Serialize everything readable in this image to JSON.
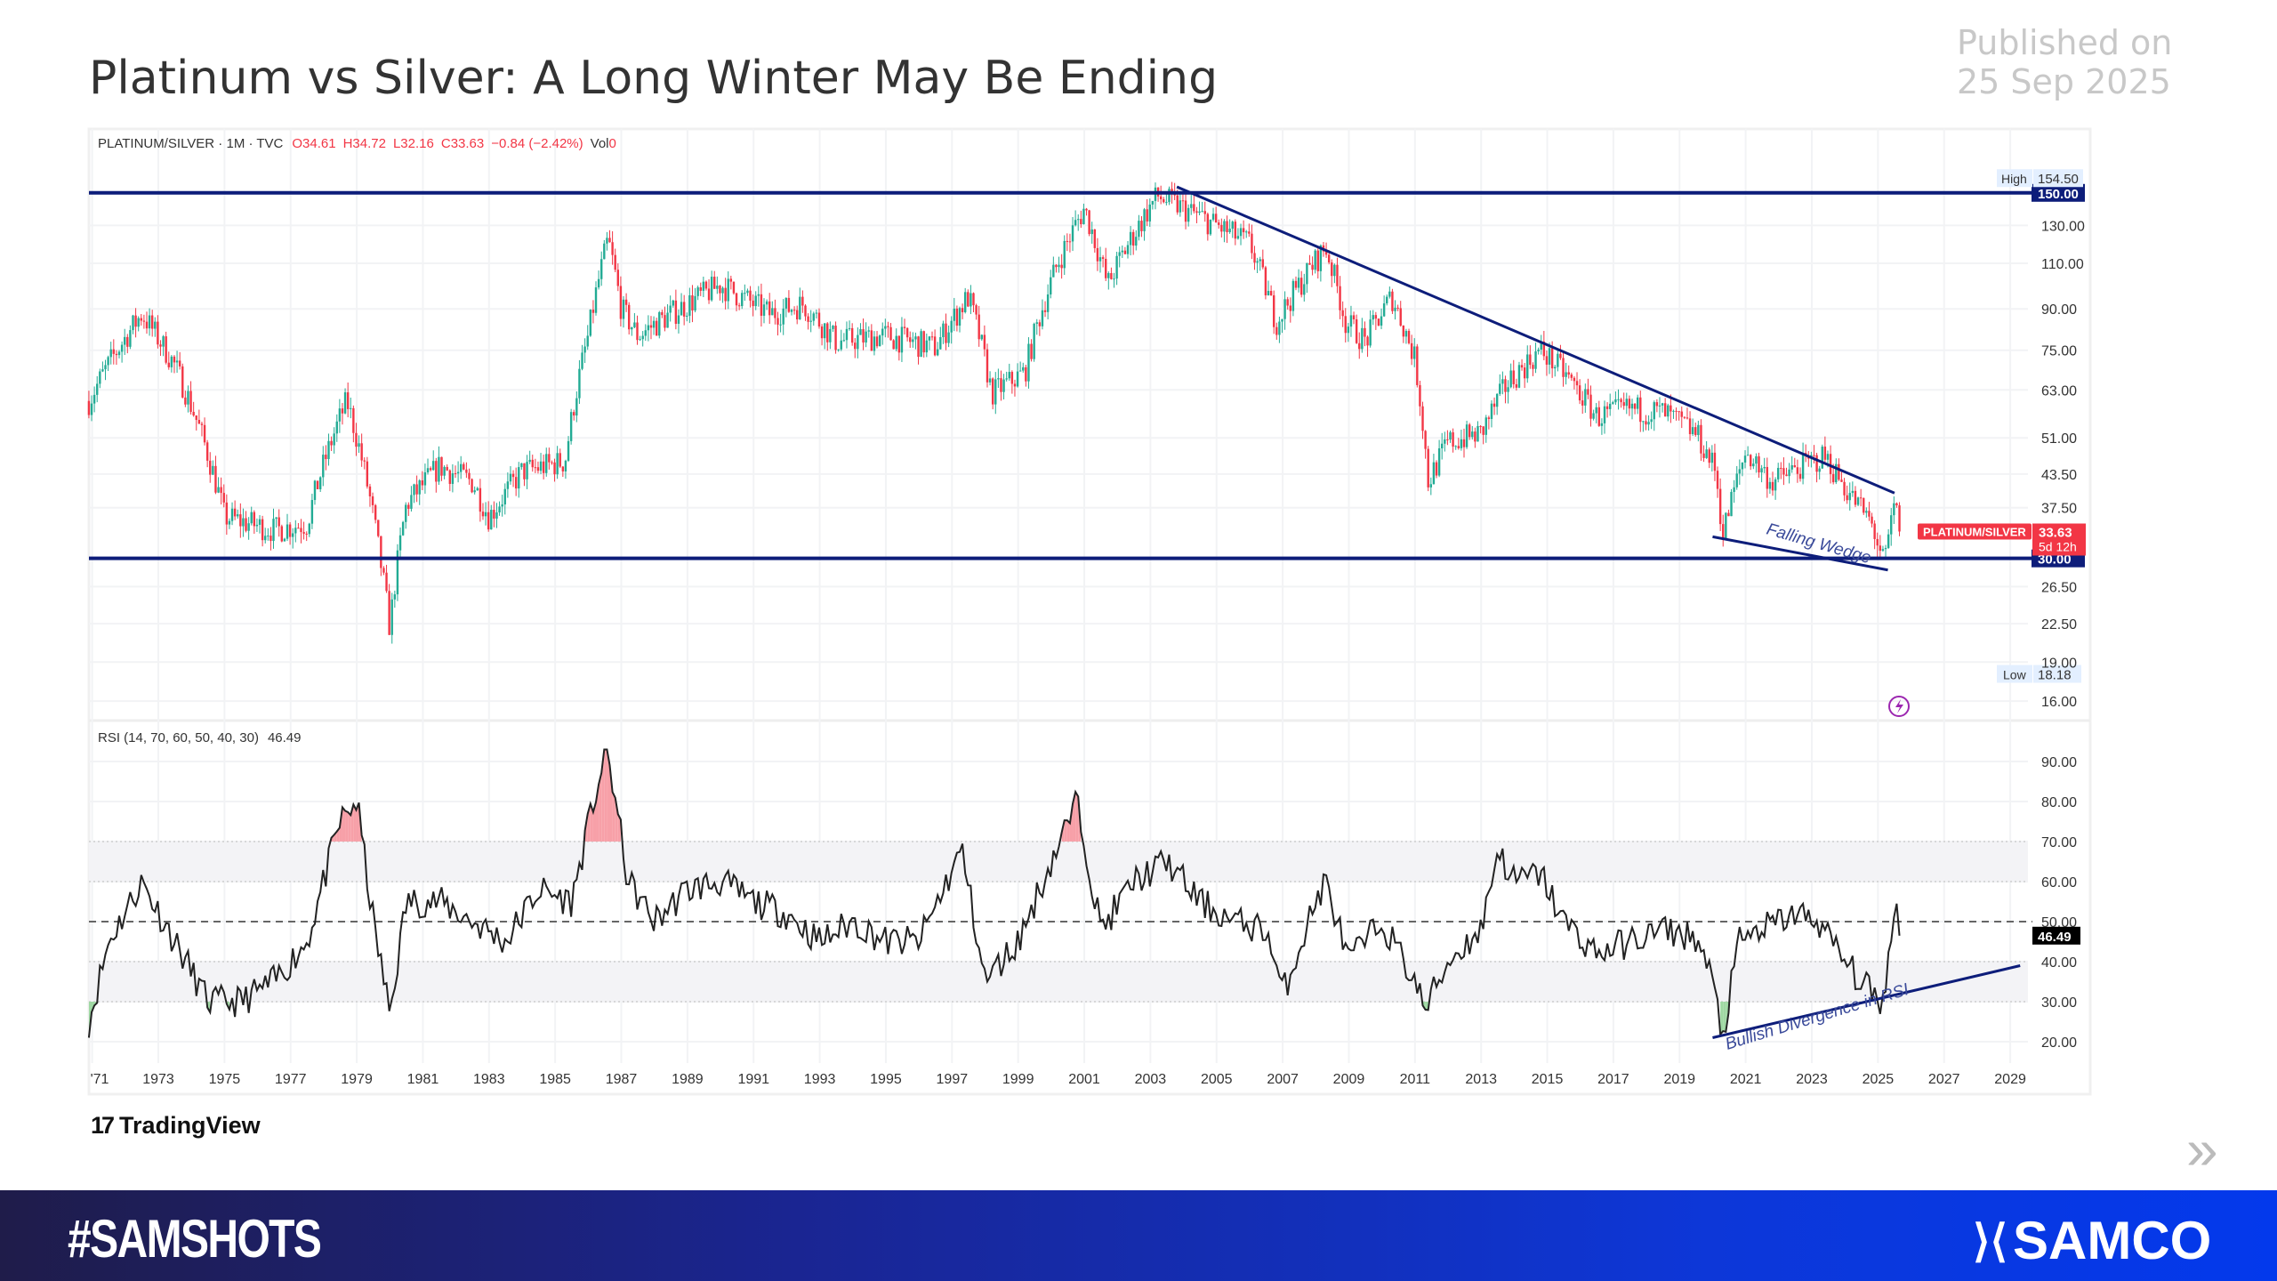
{
  "header": {
    "title": "Platinum vs Silver: A Long Winter May Be Ending",
    "published_label": "Published on",
    "published_date": "25 Sep 2025"
  },
  "legend": {
    "symbol": "PLATINUM/SILVER · 1M · TVC",
    "o": "O34.61",
    "h": "H34.72",
    "l": "L32.16",
    "c": "C33.63",
    "chg": "−0.84 (−2.42%)",
    "vol_label": "Vol",
    "vol": "0"
  },
  "rsi_legend": {
    "label": "RSI (14, 70, 60, 50, 40, 30)",
    "value": "46.49"
  },
  "footer": {
    "brand": "TradingView",
    "hashtag": "#SAMSHOTS",
    "company": "SAMCO"
  },
  "colors": {
    "up": "#22ab94",
    "down": "#f23645",
    "line": "#0d1d7a",
    "text": "#333333"
  },
  "chart_data": [
    {
      "type": "candlestick",
      "title": "PLATINUM/SILVER",
      "scale": "log",
      "ylim": [
        15,
        160
      ],
      "yticks": [
        16,
        19,
        22.5,
        26.5,
        37.5,
        43.5,
        51,
        63,
        75,
        90,
        110,
        130
      ],
      "x_ticks": [
        "'71",
        "1973",
        "1975",
        "1977",
        "1979",
        "1981",
        "1983",
        "1985",
        "1987",
        "1989",
        "1991",
        "1993",
        "1995",
        "1997",
        "1999",
        "2001",
        "2003",
        "2005",
        "2007",
        "2009",
        "2011",
        "2013",
        "2015",
        "2017",
        "2019",
        "2021",
        "2023",
        "2025",
        "2027",
        "2029"
      ],
      "x_tick_years": [
        1971,
        1973,
        1975,
        1977,
        1979,
        1981,
        1983,
        1985,
        1987,
        1989,
        1991,
        1993,
        1995,
        1997,
        1999,
        2001,
        2003,
        2005,
        2007,
        2009,
        2011,
        2013,
        2015,
        2017,
        2019,
        2021,
        2023,
        2025,
        2027,
        2029
      ],
      "approx_path": [
        [
          1970.9,
          60
        ],
        [
          1972.5,
          88
        ],
        [
          1973.5,
          70
        ],
        [
          1975,
          36
        ],
        [
          1976.5,
          34
        ],
        [
          1977.5,
          35
        ],
        [
          1978.7,
          60
        ],
        [
          1979.7,
          30
        ],
        [
          1980.0,
          22
        ],
        [
          1980.5,
          38
        ],
        [
          1981.5,
          45
        ],
        [
          1982.5,
          42
        ],
        [
          1983,
          36
        ],
        [
          1984,
          44
        ],
        [
          1985.3,
          46
        ],
        [
          1986.0,
          80
        ],
        [
          1986.6,
          122
        ],
        [
          1987.0,
          90
        ],
        [
          1987.5,
          80
        ],
        [
          1988.5,
          88
        ],
        [
          1990,
          100
        ],
        [
          1991.5,
          88
        ],
        [
          1992.5,
          92
        ],
        [
          1993.5,
          78
        ],
        [
          1995,
          80
        ],
        [
          1996.5,
          76
        ],
        [
          1997.5,
          95
        ],
        [
          1998.2,
          62
        ],
        [
          1999.2,
          68
        ],
        [
          2000.2,
          110
        ],
        [
          2001.0,
          140
        ],
        [
          2001.7,
          100
        ],
        [
          2002.5,
          125
        ],
        [
          2003.2,
          148
        ],
        [
          2004,
          140
        ],
        [
          2005,
          130
        ],
        [
          2006,
          120
        ],
        [
          2006.8,
          85
        ],
        [
          2007.5,
          100
        ],
        [
          2008.3,
          118
        ],
        [
          2008.9,
          85
        ],
        [
          2009.5,
          78
        ],
        [
          2010.3,
          95
        ],
        [
          2011.0,
          72
        ],
        [
          2011.4,
          42
        ],
        [
          2012,
          50
        ],
        [
          2013,
          52
        ],
        [
          2013.8,
          65
        ],
        [
          2014.8,
          75
        ],
        [
          2015.5,
          68
        ],
        [
          2016.5,
          56
        ],
        [
          2017.5,
          58
        ],
        [
          2018.5,
          57
        ],
        [
          2019.5,
          52
        ],
        [
          2020.1,
          44
        ],
        [
          2020.3,
          33
        ],
        [
          2021.0,
          48
        ],
        [
          2021.8,
          42
        ],
        [
          2022.7,
          45
        ],
        [
          2023.4,
          47
        ],
        [
          2024.0,
          41
        ],
        [
          2024.8,
          35
        ],
        [
          2025.2,
          29
        ],
        [
          2025.5,
          38
        ],
        [
          2025.7,
          33.63
        ]
      ],
      "high": 154.5,
      "low": 18.18,
      "last": 33.63,
      "last_label": "PLATINUM/SILVER",
      "countdown": "5d 12h",
      "levels": [
        {
          "value": 150,
          "label": "150.00"
        },
        {
          "value": 30,
          "label": "30.00"
        }
      ],
      "high_label": "High",
      "high_value": "154.50",
      "low_label": "Low",
      "low_value": "18.18",
      "last_value": "33.63",
      "trendlines": [
        {
          "from": [
            2003.8,
            154
          ],
          "to": [
            2025.5,
            40
          ]
        },
        {
          "from": [
            2020.0,
            33
          ],
          "to": [
            2025.3,
            28.5
          ]
        }
      ],
      "annotation": "Falling Wedge"
    },
    {
      "type": "line",
      "title": "RSI (14, 70, 60, 50, 40, 30)",
      "ylim": [
        15,
        95
      ],
      "yticks": [
        20,
        30,
        40,
        50,
        60,
        70,
        80,
        90
      ],
      "ytick_labels": [
        "20.00",
        "30.00",
        "40.00",
        "50.00",
        "60.00",
        "70.00",
        "80.00",
        "90.00"
      ],
      "approx_path": [
        [
          1970.9,
          25
        ],
        [
          1971.5,
          45
        ],
        [
          1972.5,
          60
        ],
        [
          1973.5,
          45
        ],
        [
          1974.5,
          30
        ],
        [
          1975.5,
          30
        ],
        [
          1976.5,
          35
        ],
        [
          1977.5,
          45
        ],
        [
          1978.5,
          75
        ],
        [
          1979.0,
          80
        ],
        [
          1979.5,
          50
        ],
        [
          1980.0,
          27
        ],
        [
          1980.5,
          55
        ],
        [
          1981.5,
          55
        ],
        [
          1982.5,
          50
        ],
        [
          1983.5,
          45
        ],
        [
          1984.5,
          58
        ],
        [
          1985.5,
          55
        ],
        [
          1986.3,
          85
        ],
        [
          1986.6,
          92
        ],
        [
          1987.2,
          60
        ],
        [
          1988,
          50
        ],
        [
          1989,
          58
        ],
        [
          1990,
          60
        ],
        [
          1991,
          55
        ],
        [
          1992,
          52
        ],
        [
          1993,
          45
        ],
        [
          1994,
          50
        ],
        [
          1995,
          45
        ],
        [
          1996,
          45
        ],
        [
          1997.3,
          68
        ],
        [
          1998,
          35
        ],
        [
          1999,
          45
        ],
        [
          2000,
          65
        ],
        [
          2000.8,
          80
        ],
        [
          2001.5,
          48
        ],
        [
          2002.5,
          60
        ],
        [
          2003.5,
          65
        ],
        [
          2004.5,
          55
        ],
        [
          2005.5,
          50
        ],
        [
          2006.5,
          48
        ],
        [
          2007,
          32
        ],
        [
          2008,
          55
        ],
        [
          2008.3,
          60
        ],
        [
          2009,
          40
        ],
        [
          2010,
          50
        ],
        [
          2011,
          35
        ],
        [
          2011.3,
          28
        ],
        [
          2012,
          40
        ],
        [
          2013,
          48
        ],
        [
          2013.5,
          68
        ],
        [
          2014,
          60
        ],
        [
          2014.8,
          62
        ],
        [
          2015.5,
          50
        ],
        [
          2016.5,
          42
        ],
        [
          2017.5,
          45
        ],
        [
          2018.5,
          48
        ],
        [
          2019.5,
          46
        ],
        [
          2020.0,
          35
        ],
        [
          2020.3,
          21
        ],
        [
          2020.8,
          45
        ],
        [
          2021.5,
          48
        ],
        [
          2022.5,
          52
        ],
        [
          2023.2,
          50
        ],
        [
          2024.0,
          40
        ],
        [
          2024.8,
          32
        ],
        [
          2025.2,
          30
        ],
        [
          2025.5,
          56
        ],
        [
          2025.7,
          46.49
        ]
      ],
      "last": 46.49,
      "overbought": 70,
      "oversold": 30,
      "midline": 50,
      "trendline": {
        "from": [
          2020.0,
          21
        ],
        "to": [
          2029.3,
          39
        ]
      },
      "annotation": "Bullish Divergence in RSI"
    }
  ]
}
